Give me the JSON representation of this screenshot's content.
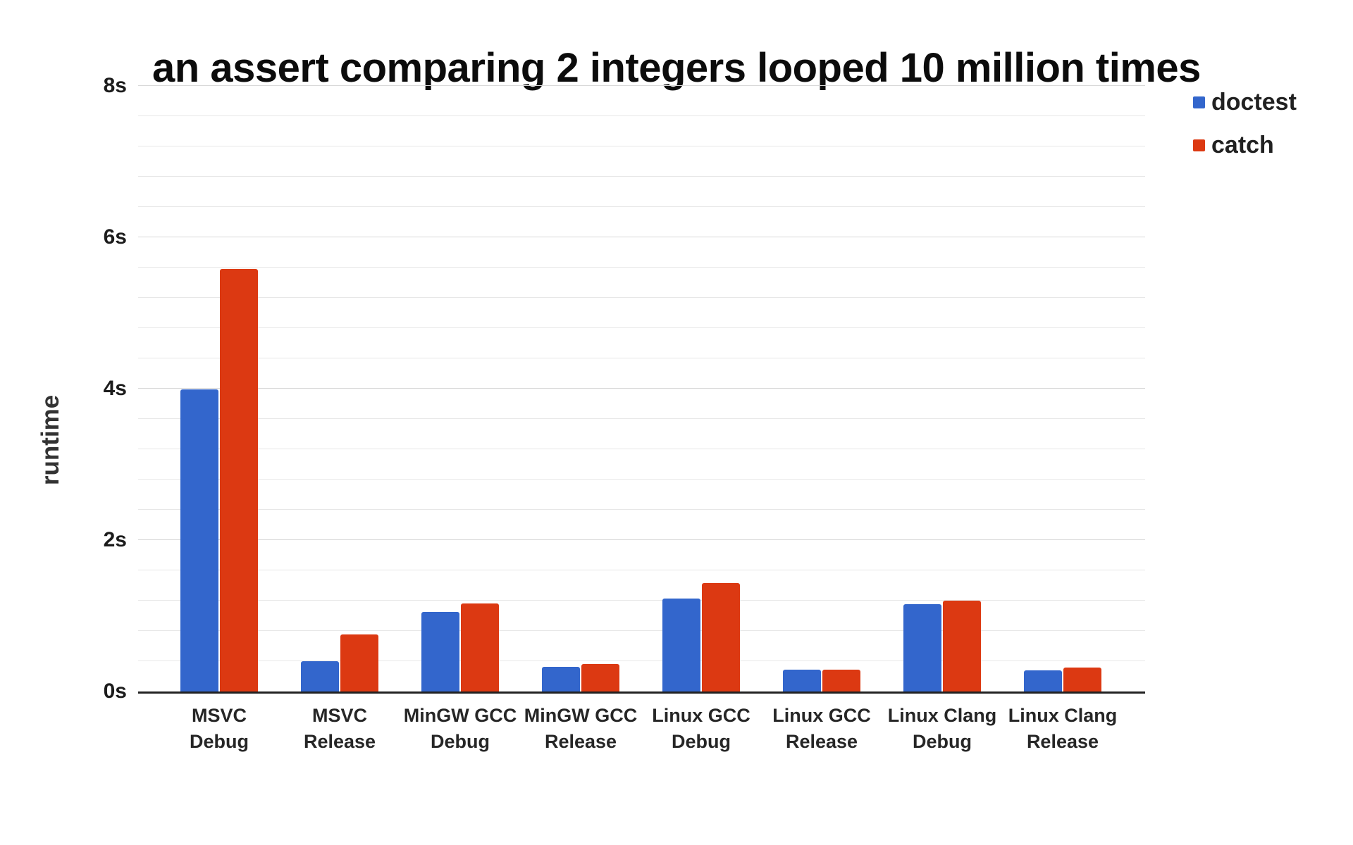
{
  "chart_data": {
    "type": "bar",
    "title": "an assert comparing 2 integers looped 10 million times",
    "ylabel": "runtime",
    "xlabel": "",
    "unit": "s",
    "categories": [
      "MSVC Debug",
      "MSVC Release",
      "MinGW GCC Debug",
      "MinGW GCC Release",
      "Linux GCC Debug",
      "Linux GCC Release",
      "Linux Clang Debug",
      "Linux Clang Release"
    ],
    "category_lines": [
      [
        "MSVC",
        "Debug"
      ],
      [
        "MSVC",
        "Release"
      ],
      [
        "MinGW GCC",
        "Debug"
      ],
      [
        "MinGW GCC",
        "Release"
      ],
      [
        "Linux GCC",
        "Debug"
      ],
      [
        "Linux GCC",
        "Release"
      ],
      [
        "Linux Clang",
        "Debug"
      ],
      [
        "Linux Clang",
        "Release"
      ]
    ],
    "series": [
      {
        "name": "doctest",
        "color": "#3366cc",
        "values": [
          3.99,
          0.4,
          1.05,
          0.33,
          1.23,
          0.29,
          1.15,
          0.28
        ]
      },
      {
        "name": "catch",
        "color": "#dc3912",
        "values": [
          5.58,
          0.75,
          1.16,
          0.36,
          1.43,
          0.29,
          1.2,
          0.32
        ]
      }
    ],
    "ylim": [
      0,
      8
    ],
    "ytick_values": [
      0,
      2,
      4,
      6,
      8
    ],
    "ytick_labels": [
      "0s",
      "2s",
      "4s",
      "6s",
      "8s"
    ],
    "minor_tick_step": 0.4,
    "major_tick_step": 2,
    "grid": true,
    "legend_position": "top-right",
    "colors": {
      "grid_minor": "#e7e7e7",
      "grid_major": "#d8d8d8",
      "axis_line": "#222222",
      "text": "#1f1f1f",
      "background": "#ffffff"
    }
  }
}
